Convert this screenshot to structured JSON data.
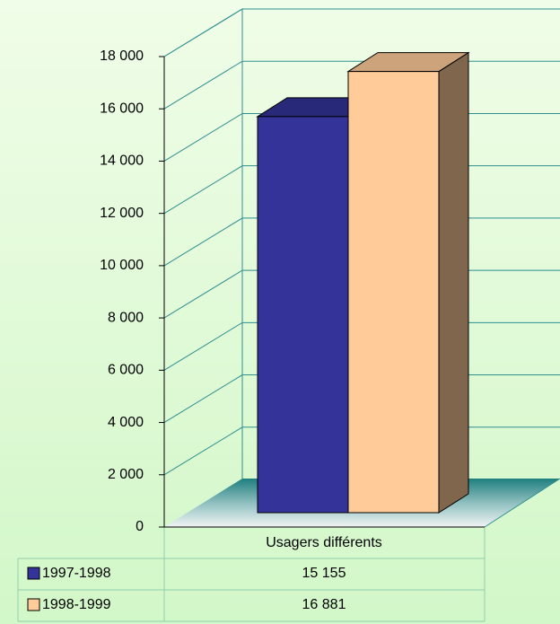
{
  "chart_data": {
    "type": "bar3d",
    "categories": [
      "Usagers différents"
    ],
    "series": [
      {
        "name": "1997-1998",
        "color": "#333399",
        "values": [
          15155
        ],
        "value_labels": [
          "15 155"
        ]
      },
      {
        "name": "1998-1999",
        "color": "#ffcc99",
        "values": [
          16881
        ],
        "value_labels": [
          "16 881"
        ]
      }
    ],
    "ylim": [
      0,
      18000
    ],
    "yticks": [
      0,
      {
        "value": 2000,
        "label": "2 000"
      },
      {
        "value": 4000,
        "label": "4 000"
      },
      {
        "value": 6000,
        "label": "6 000"
      },
      {
        "value": 8000,
        "label": "8 000"
      },
      {
        "value": 10000,
        "label": "10 000"
      },
      {
        "value": 12000,
        "label": "12 000"
      },
      {
        "value": 14000,
        "label": "14 000"
      },
      {
        "value": 16000,
        "label": "16 000"
      },
      {
        "value": 18000,
        "label": "18 000"
      }
    ],
    "grid": true
  }
}
